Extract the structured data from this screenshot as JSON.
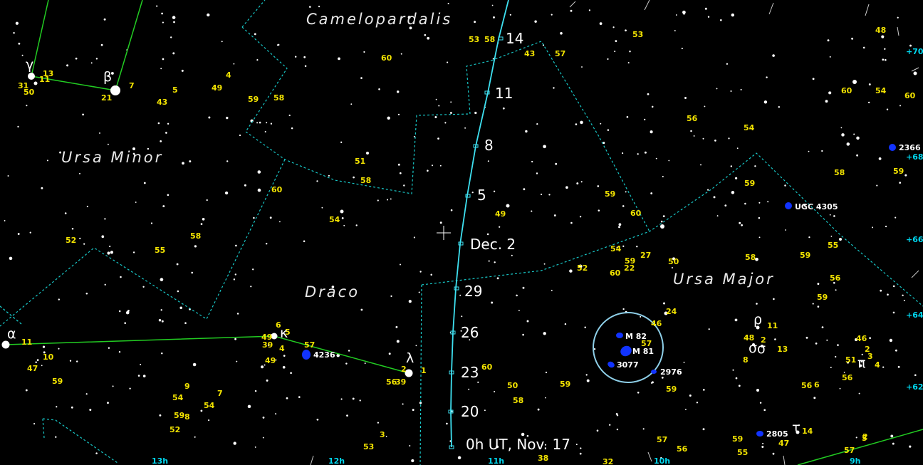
{
  "constellations": [
    "Camelopardalis",
    "Ursa Minor",
    "Draco",
    "Ursa Major"
  ],
  "comet_track": {
    "dates": [
      "14",
      "11",
      "8",
      "5",
      "Dec. 2",
      "29",
      "26",
      "23",
      "20",
      "0h UT, Nov. 17"
    ],
    "color": "#3ee0f0"
  },
  "greek_letters": [
    "γ",
    "β",
    "α",
    "κ",
    "λ",
    "ρ",
    "σ",
    "σ",
    "π",
    "τ"
  ],
  "galaxies": [
    "M 82",
    "M 81",
    "3077",
    "2976",
    "4236",
    "2366",
    "UGC 4305",
    "2805"
  ],
  "ra_labels": [
    "13h",
    "12h",
    "11h",
    "10h",
    "9h"
  ],
  "dec_labels": [
    "+70°",
    "+68°",
    "+66°",
    "+64°",
    "+62°"
  ],
  "magnitudes": [
    "53",
    "58",
    "43",
    "57",
    "48",
    "53",
    "60",
    "49",
    "4",
    "59",
    "58",
    "5",
    "43",
    "13",
    "31",
    "50",
    "11",
    "21",
    "7",
    "51",
    "58",
    "60",
    "54",
    "52",
    "55",
    "58",
    "49",
    "59",
    "60",
    "54",
    "59",
    "27",
    "22",
    "50",
    "60",
    "52",
    "58",
    "59",
    "55",
    "56",
    "59",
    "54",
    "56",
    "60",
    "54",
    "60",
    "59",
    "58",
    "59",
    "24",
    "46",
    "57",
    "59",
    "48",
    "2",
    "13",
    "11",
    "8",
    "51",
    "56",
    "6",
    "56",
    "46",
    "2",
    "3",
    "4",
    "55",
    "47",
    "57",
    "5",
    "14",
    "6",
    "5",
    "49",
    "39",
    "4",
    "49",
    "57",
    "2",
    "1",
    "56",
    "39",
    "60",
    "50",
    "59",
    "58",
    "11",
    "10",
    "47",
    "59",
    "54",
    "9",
    "54",
    "7",
    "59",
    "8",
    "52",
    "53",
    "3",
    "38",
    "32",
    "56",
    "57",
    "59",
    "2",
    "1"
  ],
  "colors": {
    "background": "#000000",
    "boundary": "#18c8c8",
    "stick_figure": "#22cc22",
    "magnitude_labels": "#f2e300",
    "galaxy": "#1133ff",
    "circle": "#8ecfe8"
  }
}
